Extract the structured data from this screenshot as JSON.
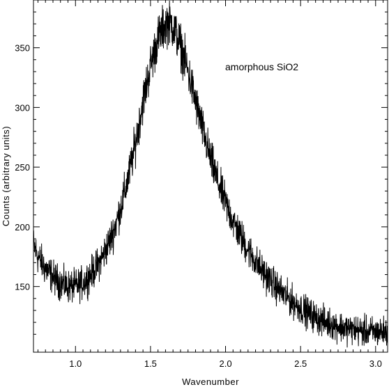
{
  "chart_data": {
    "type": "line",
    "title": "",
    "xlabel": "Wavenumber",
    "ylabel": "Counts (arbitrary units)",
    "annotation": "amorphous SiO2",
    "xlim": [
      0.72,
      3.08
    ],
    "ylim": [
      95,
      390
    ],
    "x_ticks": [
      1.0,
      1.5,
      2.0,
      2.5,
      3.0
    ],
    "x_tick_labels": [
      "1.0",
      "1.5",
      "2.0",
      "2.5",
      "3.0"
    ],
    "y_ticks": [
      150,
      200,
      250,
      300,
      350
    ],
    "y_tick_labels": [
      "150",
      "200",
      "250",
      "300",
      "350"
    ],
    "grid": false,
    "series": [
      {
        "x": [
          0.72,
          0.75,
          0.8,
          0.85,
          0.9,
          0.95,
          1.0,
          1.05,
          1.1,
          1.15,
          1.2,
          1.25,
          1.3,
          1.35,
          1.4,
          1.45,
          1.5,
          1.55,
          1.6,
          1.625,
          1.65,
          1.7,
          1.75,
          1.8,
          1.85,
          1.9,
          1.95,
          2.0,
          2.05,
          2.1,
          2.15,
          2.2,
          2.25,
          2.3,
          2.35,
          2.4,
          2.45,
          2.5,
          2.55,
          2.6,
          2.65,
          2.7,
          2.75,
          2.8,
          2.85,
          2.9,
          2.95,
          3.0,
          3.05,
          3.08
        ],
        "y": [
          185,
          175,
          165,
          158,
          153,
          150,
          150,
          153,
          160,
          168,
          180,
          195,
          215,
          240,
          270,
          305,
          335,
          358,
          370,
          372,
          368,
          352,
          330,
          305,
          280,
          257,
          237,
          220,
          205,
          192,
          181,
          171,
          162,
          155,
          148,
          142,
          137,
          132,
          128,
          124,
          121,
          119,
          117,
          115,
          114,
          113,
          112,
          112,
          112,
          112
        ]
      }
    ]
  }
}
